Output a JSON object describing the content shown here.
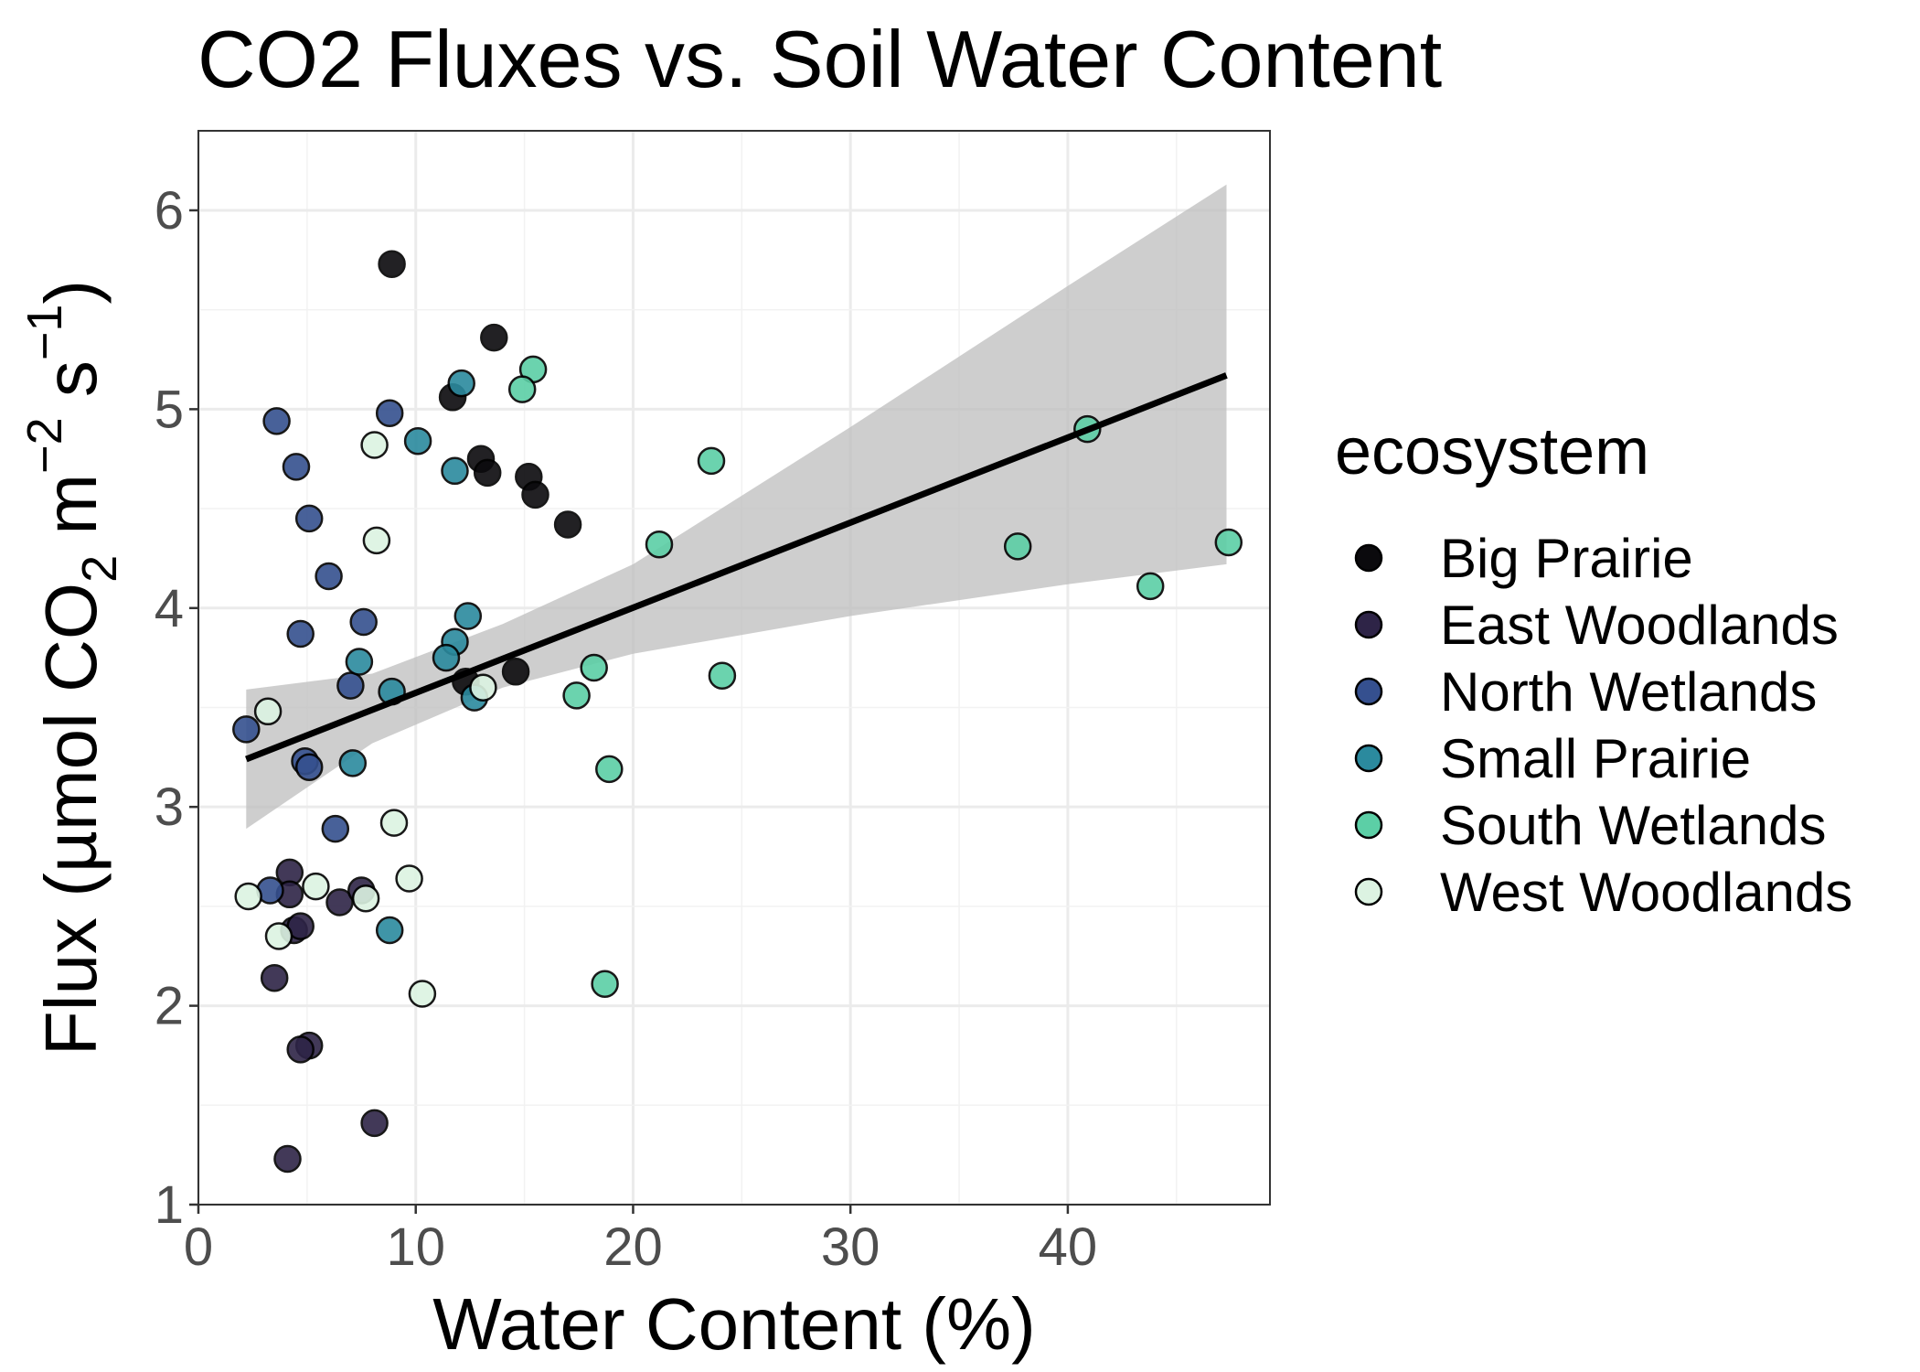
{
  "chart_data": {
    "type": "scatter",
    "title": "CO2 Fluxes vs. Soil Water Content",
    "xlabel": "Water Content (%)",
    "ylabel": {
      "prefix": "Flux (µmol CO",
      "co2_sub": "2",
      "unit_m": " m",
      "m_exp": "−2",
      "unit_s": " s",
      "s_exp": "−1",
      "suffix": ")"
    },
    "xlim": [
      0,
      49.3
    ],
    "ylim": [
      1,
      6.4
    ],
    "x_ticks": [
      0,
      10,
      20,
      30,
      40
    ],
    "y_ticks": [
      1,
      2,
      3,
      4,
      5,
      6
    ],
    "grid": true,
    "legend": {
      "title": "ecosystem",
      "position": "right"
    },
    "colors": {
      "Big Prairie": "#0b0a0d",
      "East Woodlands": "#2e2447",
      "North Wetlands": "#35508f",
      "Small Prairie": "#2b8a9e",
      "South Wetlands": "#5ccfa6",
      "West Woodlands": "#dcf3e2",
      "trend": "#000000",
      "band": "#bebebe"
    },
    "series": [
      {
        "name": "Big Prairie",
        "points": [
          [
            8.9,
            5.73
          ],
          [
            13.6,
            5.36
          ],
          [
            11.7,
            5.06
          ],
          [
            13.0,
            4.75
          ],
          [
            13.3,
            4.68
          ],
          [
            15.2,
            4.66
          ],
          [
            15.5,
            4.57
          ],
          [
            17.0,
            4.42
          ],
          [
            12.3,
            3.63
          ],
          [
            14.6,
            3.68
          ]
        ]
      },
      {
        "name": "East Woodlands",
        "points": [
          [
            4.2,
            2.67
          ],
          [
            4.2,
            2.56
          ],
          [
            4.4,
            2.38
          ],
          [
            4.7,
            2.4
          ],
          [
            6.5,
            2.52
          ],
          [
            7.5,
            2.58
          ],
          [
            3.5,
            2.14
          ],
          [
            5.1,
            1.8
          ],
          [
            4.7,
            1.78
          ],
          [
            8.1,
            1.41
          ],
          [
            4.1,
            1.23
          ]
        ]
      },
      {
        "name": "North Wetlands",
        "points": [
          [
            3.6,
            4.94
          ],
          [
            4.5,
            4.71
          ],
          [
            5.1,
            4.45
          ],
          [
            6.0,
            4.16
          ],
          [
            4.7,
            3.87
          ],
          [
            7.6,
            3.93
          ],
          [
            8.8,
            4.98
          ],
          [
            2.2,
            3.39
          ],
          [
            4.9,
            3.23
          ],
          [
            5.1,
            3.2
          ],
          [
            6.3,
            2.89
          ],
          [
            3.3,
            2.58
          ],
          [
            7.0,
            3.61
          ]
        ]
      },
      {
        "name": "Small Prairie",
        "points": [
          [
            12.1,
            5.13
          ],
          [
            10.1,
            4.84
          ],
          [
            11.8,
            4.69
          ],
          [
            12.4,
            3.96
          ],
          [
            11.8,
            3.83
          ],
          [
            11.4,
            3.75
          ],
          [
            7.4,
            3.73
          ],
          [
            8.9,
            3.58
          ],
          [
            12.7,
            3.55
          ],
          [
            7.1,
            3.22
          ],
          [
            8.8,
            2.38
          ]
        ]
      },
      {
        "name": "South Wetlands",
        "points": [
          [
            15.4,
            5.2
          ],
          [
            14.9,
            5.1
          ],
          [
            23.6,
            4.74
          ],
          [
            21.2,
            4.32
          ],
          [
            18.2,
            3.7
          ],
          [
            17.4,
            3.56
          ],
          [
            24.1,
            3.66
          ],
          [
            18.9,
            3.19
          ],
          [
            18.7,
            2.11
          ],
          [
            37.7,
            4.31
          ],
          [
            40.9,
            4.9
          ],
          [
            43.8,
            4.11
          ],
          [
            47.4,
            4.33
          ]
        ]
      },
      {
        "name": "West Woodlands",
        "points": [
          [
            8.1,
            4.82
          ],
          [
            8.2,
            4.34
          ],
          [
            3.2,
            3.48
          ],
          [
            13.1,
            3.6
          ],
          [
            9.0,
            2.92
          ],
          [
            9.7,
            2.64
          ],
          [
            2.3,
            2.55
          ],
          [
            5.4,
            2.6
          ],
          [
            7.7,
            2.54
          ],
          [
            3.7,
            2.35
          ],
          [
            10.3,
            2.06
          ]
        ]
      }
    ],
    "trend_line": {
      "x": [
        2.2,
        47.3
      ],
      "y": [
        3.24,
        5.17
      ]
    },
    "confidence_band": {
      "x": [
        2.2,
        8,
        14,
        20,
        30,
        40,
        47.3
      ],
      "lower": [
        2.89,
        3.32,
        3.6,
        3.77,
        3.96,
        4.12,
        4.22
      ],
      "upper": [
        3.59,
        3.67,
        3.92,
        4.22,
        4.91,
        5.62,
        6.13
      ]
    }
  }
}
